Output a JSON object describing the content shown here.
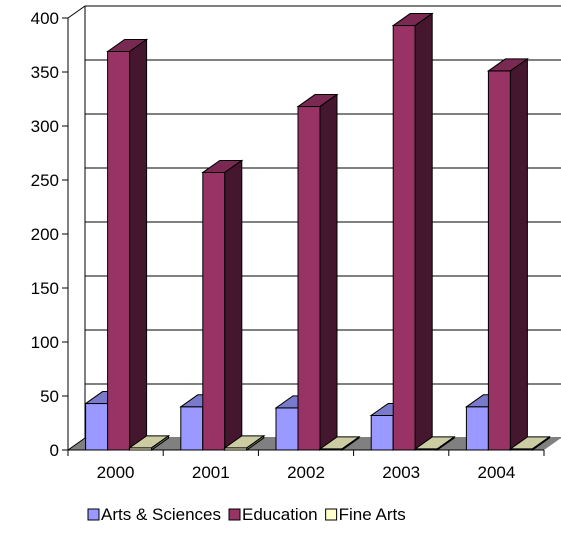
{
  "chart_data": {
    "type": "bar",
    "categories": [
      "2000",
      "2001",
      "2002",
      "2003",
      "2004"
    ],
    "series": [
      {
        "name": "Arts & Sciences",
        "color": "#9999ff",
        "values": [
          43,
          40,
          39,
          32,
          40
        ]
      },
      {
        "name": "Education",
        "color": "#993366",
        "values": [
          369,
          257,
          318,
          393,
          351
        ]
      },
      {
        "name": "Fine Arts",
        "color": "#ffffcc",
        "values": [
          2,
          2,
          1,
          1,
          1
        ]
      }
    ],
    "ylim": [
      0,
      400
    ],
    "yticks": [
      "0",
      "50",
      "100",
      "150",
      "200",
      "250",
      "300",
      "350",
      "400"
    ],
    "grid": true,
    "style": "3d-clustered",
    "legend_position": "bottom"
  }
}
